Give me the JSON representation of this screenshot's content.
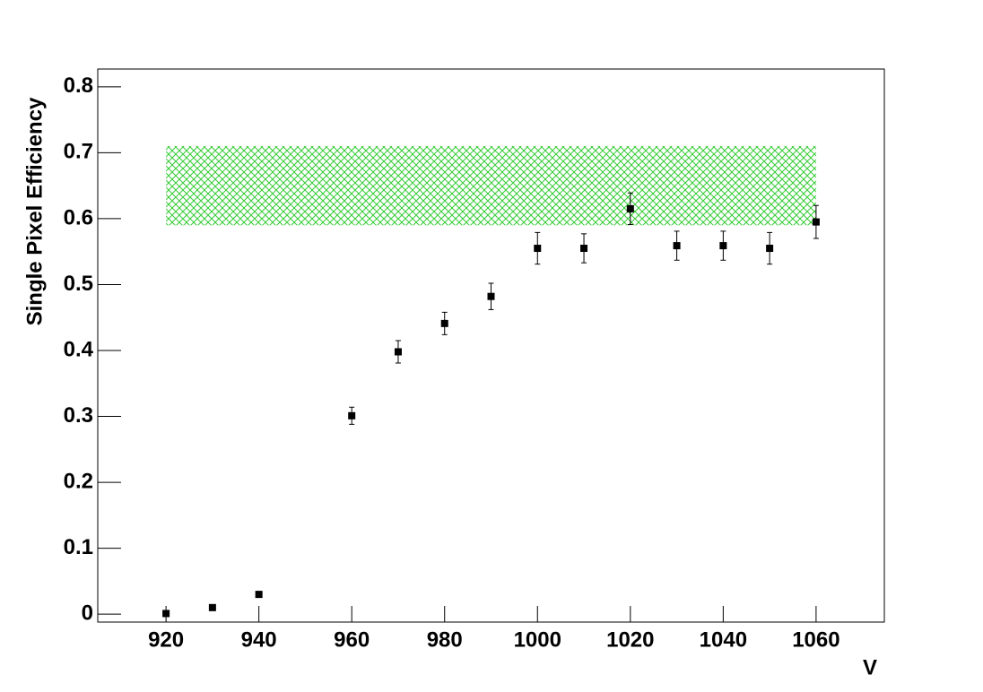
{
  "chart_data": {
    "type": "scatter",
    "xlabel": "V",
    "ylabel": "Single Pixel Efficiency",
    "x": [
      920,
      930,
      940,
      960,
      970,
      980,
      990,
      1000,
      1010,
      1020,
      1030,
      1040,
      1050,
      1060
    ],
    "series": [
      {
        "color": "#000000",
        "values": [
          0.001,
          0.01,
          0.03,
          0.301,
          0.398,
          0.441,
          0.482,
          0.555,
          0.555,
          0.615,
          0.559,
          0.559,
          0.555,
          0.595
        ],
        "errors": [
          0.003,
          0.003,
          0.003,
          0.013,
          0.017,
          0.017,
          0.02,
          0.024,
          0.022,
          0.024,
          0.022,
          0.022,
          0.024,
          0.025
        ]
      }
    ],
    "band": {
      "x": [
        920,
        1060
      ],
      "y": [
        0.59,
        0.71
      ],
      "color": "#33cc33"
    },
    "xlim": [
      905.3,
      1074.7
    ],
    "ylim": [
      -0.012,
      0.827
    ],
    "xticks": [
      920,
      940,
      960,
      980,
      1000,
      1020,
      1040,
      1060
    ],
    "yticks": [
      0,
      0.1,
      0.2,
      0.3,
      0.4,
      0.5,
      0.6,
      0.7,
      0.8
    ]
  }
}
